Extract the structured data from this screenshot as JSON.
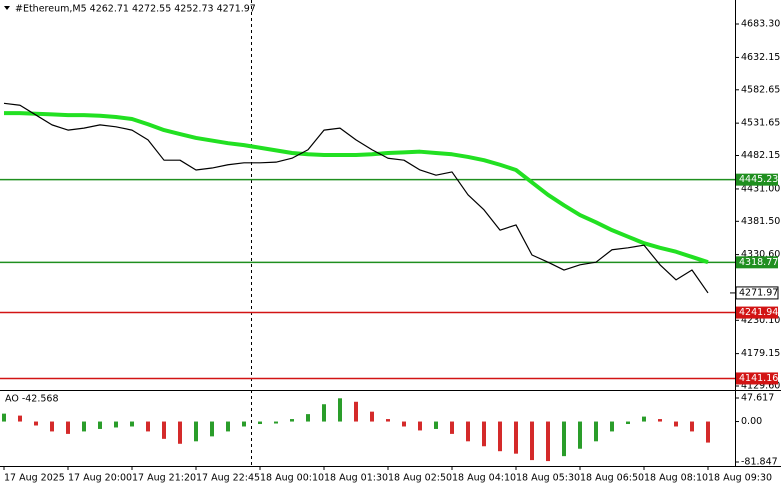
{
  "chart_data": [
    {
      "type": "line",
      "title": "#Ethereum,M5  4262.71 4272.55 4252.73 4271.97",
      "categories": [
        "17 Aug 2025",
        null,
        null,
        null,
        "17 Aug 20:00",
        null,
        null,
        null,
        "17 Aug 21:20",
        null,
        null,
        null,
        "17 Aug 22:45",
        null,
        null,
        null,
        "18 Aug 00:10",
        null,
        null,
        null,
        "18 Aug 01:30",
        null,
        null,
        null,
        "18 Aug 02:50",
        null,
        null,
        null,
        "18 Aug 04:10",
        null,
        null,
        null,
        "18 Aug 05:30",
        null,
        null,
        null,
        "18 Aug 06:50",
        null,
        null,
        null,
        "18 Aug 08:10",
        null,
        null,
        null,
        "18 Aug 09:30"
      ],
      "series": [
        {
          "color": "#000000",
          "width": 1.2,
          "values": [
            4562,
            4559,
            4544,
            4529,
            4521,
            4524,
            4529,
            4526,
            4521,
            4506,
            4475,
            4475,
            4460,
            4463,
            4468,
            4471,
            4471,
            4472,
            4478,
            4491,
            4521,
            4524,
            4506,
            4491,
            4478,
            4475,
            4460,
            4452,
            4457,
            4422,
            4399,
            4368,
            4376,
            4330,
            4319,
            4307,
            4315,
            4319,
            4338,
            4341,
            4345,
            4315,
            4292,
            4307,
            4272
          ]
        },
        {
          "color": "#22e022",
          "width": 4,
          "values": [
            4547,
            4547,
            4546,
            4545,
            4544,
            4544,
            4543,
            4541,
            4538,
            4530,
            4521,
            4515,
            4509,
            4505,
            4501,
            4498,
            4494,
            4490,
            4486,
            4484,
            4483,
            4483,
            4483,
            4484,
            4486,
            4487,
            4488,
            4486,
            4484,
            4480,
            4475,
            4468,
            4460,
            4441,
            4422,
            4406,
            4391,
            4380,
            4368,
            4358,
            4348,
            4341,
            4335,
            4327,
            4319
          ]
        }
      ],
      "ylim": [
        4123.5,
        4720
      ],
      "yticks": [
        {
          "value": 4683.3,
          "label": "4683.30"
        },
        4632.15,
        4582.65,
        4531.65,
        4482.15,
        {
          "value": 4431,
          "label": "4431.00"
        },
        {
          "value": 4381.5,
          "label": "4381.50"
        },
        {
          "value": 4330.6,
          "label": "4330.60"
        },
        {
          "value": 4230.1,
          "label": "4230.10"
        },
        4179.15,
        {
          "value": 4129.6,
          "label": "4129.60"
        }
      ],
      "levels": [
        {
          "value": 4445.23,
          "color": "#1f8f1f"
        },
        {
          "value": 4318.77,
          "color": "#1f8f1f"
        },
        {
          "value": 4241.94,
          "color": "#d21414"
        },
        {
          "value": 4141.16,
          "color": "#d21414"
        }
      ],
      "last_price": 4271.97
    },
    {
      "type": "histogram",
      "title": "AO -42.568",
      "up_color": "#2a9d2a",
      "down_color": "#d42a2a",
      "values": [
        16,
        12,
        -8,
        -20,
        -25,
        -20,
        -15,
        -12,
        -10,
        -20,
        -35,
        -45,
        -40,
        -30,
        -20,
        -10,
        -5,
        -4,
        5,
        15,
        35,
        47,
        40,
        20,
        5,
        -10,
        -18,
        -15,
        -25,
        -40,
        -50,
        -60,
        -65,
        -78,
        -80,
        -70,
        -55,
        -40,
        -20,
        -5,
        10,
        5,
        -10,
        -20,
        -42.568
      ],
      "ylim": [
        -89.94,
        59.75
      ],
      "yticks": [
        47.617,
        {
          "value": 0,
          "label": "0.00"
        },
        -81.847
      ]
    }
  ]
}
